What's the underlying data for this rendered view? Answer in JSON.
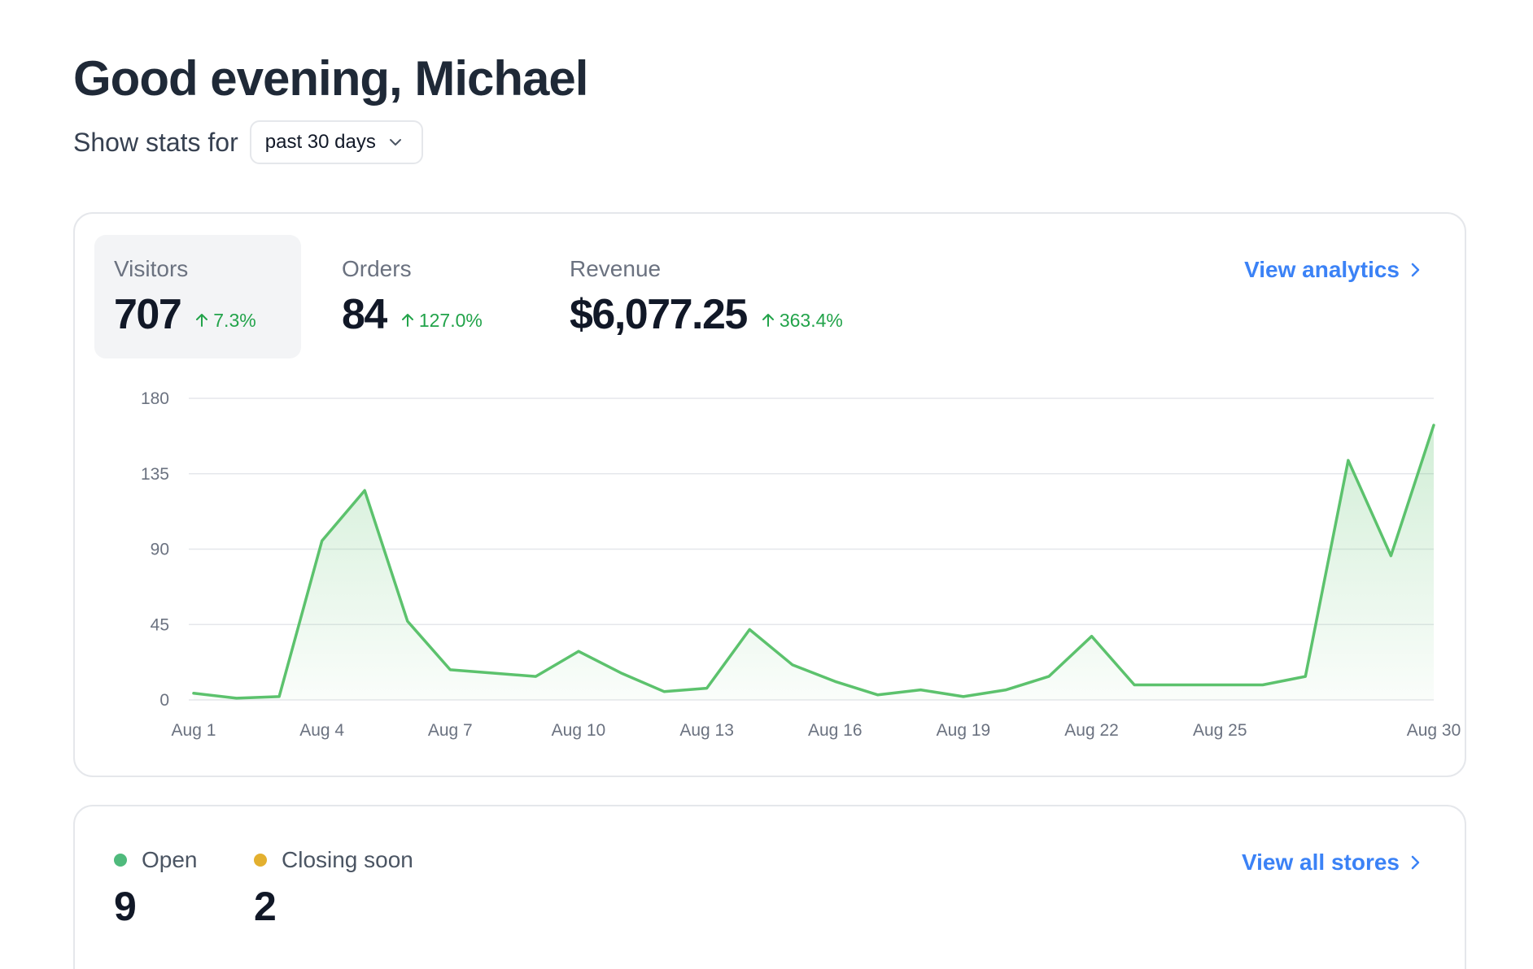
{
  "greeting": "Good evening, Michael",
  "filter": {
    "label": "Show stats for",
    "selected": "past 30 days"
  },
  "metrics": [
    {
      "label": "Visitors",
      "value": "707",
      "change": "7.3%",
      "active": true
    },
    {
      "label": "Orders",
      "value": "84",
      "change": "127.0%",
      "active": false
    },
    {
      "label": "Revenue",
      "value": "$6,077.25",
      "change": "363.4%",
      "active": false
    }
  ],
  "view_analytics": "View analytics",
  "chart_data": {
    "type": "area",
    "series": [
      {
        "values": [
          4,
          1,
          2,
          95,
          125,
          47,
          18,
          16,
          14,
          29,
          16,
          5,
          7,
          42,
          21,
          11,
          3,
          6,
          2,
          6,
          14,
          38,
          9,
          9,
          9,
          9,
          14,
          143,
          86,
          164
        ]
      }
    ],
    "x_labels": [
      "Aug 1",
      "Aug 4",
      "Aug 7",
      "Aug 10",
      "Aug 13",
      "Aug 16",
      "Aug 19",
      "Aug 22",
      "Aug 25",
      "Aug 30"
    ],
    "x_label_days": [
      1,
      4,
      7,
      10,
      13,
      16,
      19,
      22,
      25,
      30
    ],
    "y_ticks": [
      "0",
      "45",
      "90",
      "135",
      "180"
    ],
    "ylim": [
      0,
      180
    ],
    "grid": true,
    "colors": {
      "line": "#5cc26d",
      "fill": "#5cc26d",
      "grid": "#e5e7eb"
    }
  },
  "stores": {
    "open_label": "Open",
    "open_value": "9",
    "open_color": "#4fba7c",
    "closing_label": "Closing soon",
    "closing_value": "2",
    "closing_color": "#e3b02f",
    "view_all": "View all stores"
  },
  "colors": {
    "accent": "#3b82f6",
    "positive": "#22a34a"
  }
}
